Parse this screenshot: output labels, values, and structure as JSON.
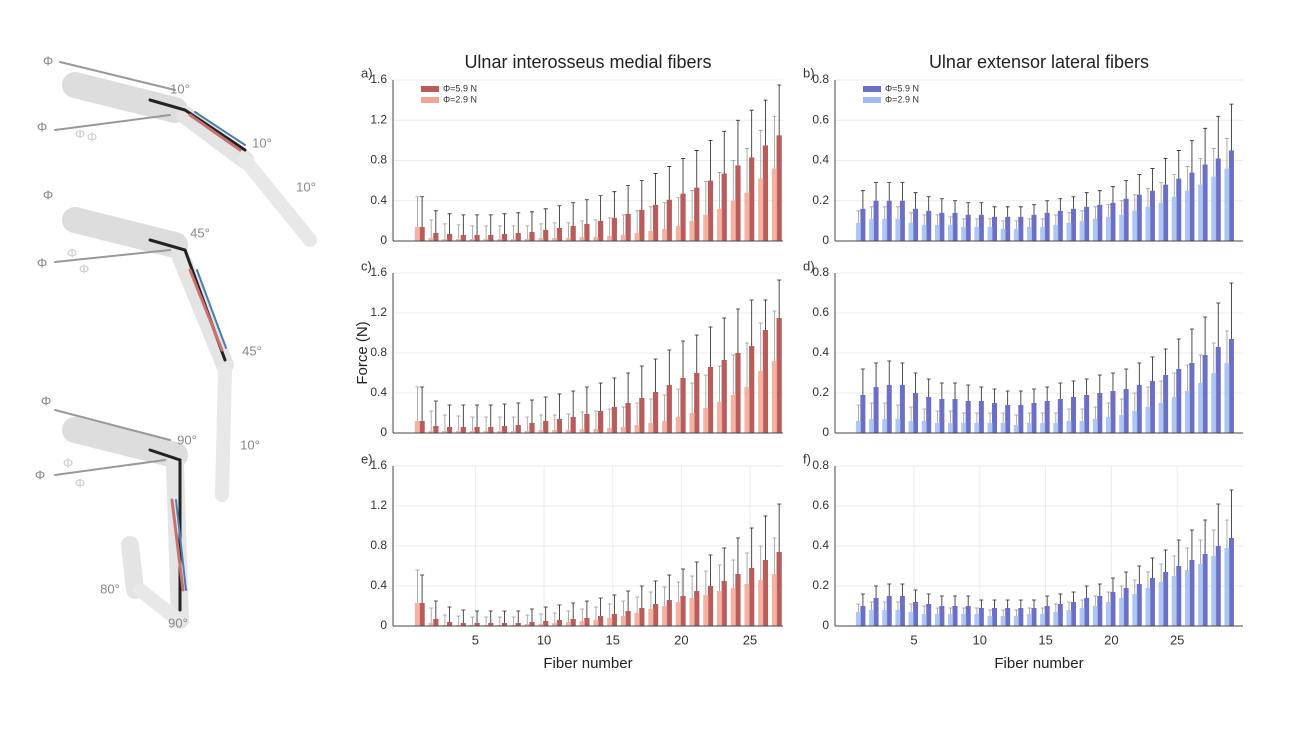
{
  "illustration": {
    "labels": [
      "Φ",
      "10°",
      "Φ",
      "Φ",
      "Φ",
      "10°",
      "10°",
      "Φ",
      "45°",
      "Φ",
      "Φ",
      "Φ",
      "45°",
      "10°",
      "Φ",
      "90°",
      "Φ",
      "Φ",
      "Φ",
      "80°",
      "90°"
    ]
  },
  "chart_data": [
    {
      "type": "bar",
      "panel": "a)",
      "title": "Ulnar interosseus medial fibers",
      "legend": "upper left",
      "grid": true,
      "x": [
        1,
        2,
        3,
        4,
        5,
        6,
        7,
        8,
        9,
        10,
        11,
        12,
        13,
        14,
        15,
        16,
        17,
        18,
        19,
        20,
        21,
        22,
        23,
        24,
        25,
        26,
        27
      ],
      "xlim": [
        -1,
        27.4
      ],
      "ylim": [
        0,
        1.6
      ],
      "yticks": [
        0,
        0.4,
        0.8,
        1.2,
        1.6
      ],
      "series": [
        {
          "name": "Φ=5.9 N",
          "color": "#b85c5c",
          "error_color": "#222222",
          "values": [
            0.14,
            0.08,
            0.07,
            0.06,
            0.06,
            0.06,
            0.07,
            0.08,
            0.09,
            0.11,
            0.13,
            0.15,
            0.17,
            0.2,
            0.23,
            0.27,
            0.31,
            0.36,
            0.41,
            0.47,
            0.53,
            0.6,
            0.67,
            0.75,
            0.83,
            0.95,
            1.05
          ],
          "errors": [
            0.3,
            0.22,
            0.2,
            0.2,
            0.2,
            0.2,
            0.2,
            0.2,
            0.2,
            0.21,
            0.22,
            0.23,
            0.24,
            0.25,
            0.26,
            0.28,
            0.29,
            0.31,
            0.33,
            0.35,
            0.37,
            0.4,
            0.42,
            0.45,
            0.47,
            0.45,
            0.5
          ]
        },
        {
          "name": "Φ=2.9 N",
          "color": "#f2a592",
          "error_color": "#999999",
          "values": [
            0.14,
            0.03,
            0.02,
            0.02,
            0.02,
            0.02,
            0.02,
            0.02,
            0.02,
            0.03,
            0.03,
            0.03,
            0.04,
            0.04,
            0.05,
            0.06,
            0.08,
            0.1,
            0.12,
            0.15,
            0.2,
            0.26,
            0.32,
            0.4,
            0.48,
            0.62,
            0.72
          ],
          "errors": [
            0.3,
            0.18,
            0.15,
            0.14,
            0.13,
            0.13,
            0.13,
            0.13,
            0.13,
            0.14,
            0.15,
            0.15,
            0.16,
            0.17,
            0.18,
            0.2,
            0.22,
            0.24,
            0.26,
            0.28,
            0.3,
            0.33,
            0.36,
            0.4,
            0.44,
            0.48,
            0.52
          ]
        }
      ]
    },
    {
      "type": "bar",
      "panel": "b)",
      "title": "Ulnar extensor lateral fibers",
      "legend": "upper left",
      "grid": true,
      "x": [
        1,
        2,
        3,
        4,
        5,
        6,
        7,
        8,
        9,
        10,
        11,
        12,
        13,
        14,
        15,
        16,
        17,
        18,
        19,
        20,
        21,
        22,
        23,
        24,
        25,
        26,
        27,
        28,
        29
      ],
      "xlim": [
        -1,
        30
      ],
      "ylim": [
        0,
        0.8
      ],
      "yticks": [
        0,
        0.2,
        0.4,
        0.6,
        0.8
      ],
      "series": [
        {
          "name": "Φ=5.9 N",
          "color": "#6b6fc6",
          "error_color": "#222222",
          "values": [
            0.16,
            0.2,
            0.2,
            0.2,
            0.16,
            0.15,
            0.14,
            0.14,
            0.13,
            0.13,
            0.12,
            0.12,
            0.12,
            0.13,
            0.14,
            0.15,
            0.16,
            0.17,
            0.18,
            0.19,
            0.21,
            0.23,
            0.25,
            0.28,
            0.31,
            0.34,
            0.38,
            0.41,
            0.45
          ],
          "errors": [
            0.09,
            0.09,
            0.09,
            0.09,
            0.08,
            0.07,
            0.07,
            0.06,
            0.06,
            0.06,
            0.05,
            0.05,
            0.05,
            0.05,
            0.06,
            0.06,
            0.06,
            0.07,
            0.07,
            0.08,
            0.09,
            0.1,
            0.11,
            0.13,
            0.14,
            0.16,
            0.18,
            0.21,
            0.23
          ]
        },
        {
          "name": "Φ=2.9 N",
          "color": "#9fbcf2",
          "error_color": "#999999",
          "values": [
            0.09,
            0.11,
            0.11,
            0.11,
            0.09,
            0.08,
            0.08,
            0.08,
            0.07,
            0.07,
            0.07,
            0.06,
            0.06,
            0.07,
            0.07,
            0.08,
            0.09,
            0.1,
            0.11,
            0.12,
            0.13,
            0.15,
            0.17,
            0.19,
            0.22,
            0.25,
            0.28,
            0.32,
            0.36
          ],
          "errors": [
            0.06,
            0.06,
            0.06,
            0.06,
            0.05,
            0.05,
            0.05,
            0.04,
            0.04,
            0.04,
            0.04,
            0.04,
            0.04,
            0.04,
            0.04,
            0.05,
            0.05,
            0.05,
            0.06,
            0.06,
            0.07,
            0.08,
            0.09,
            0.1,
            0.11,
            0.12,
            0.13,
            0.14,
            0.15
          ]
        }
      ]
    },
    {
      "type": "bar",
      "panel": "c)",
      "ylabel": "Force (N)",
      "grid": true,
      "x": [
        1,
        2,
        3,
        4,
        5,
        6,
        7,
        8,
        9,
        10,
        11,
        12,
        13,
        14,
        15,
        16,
        17,
        18,
        19,
        20,
        21,
        22,
        23,
        24,
        25,
        26,
        27
      ],
      "xlim": [
        -1,
        27.4
      ],
      "ylim": [
        0,
        1.6
      ],
      "yticks": [
        0,
        0.4,
        0.8,
        1.2,
        1.6
      ],
      "series": [
        {
          "color": "#b85c5c",
          "error_color": "#222222",
          "values": [
            0.12,
            0.07,
            0.06,
            0.06,
            0.06,
            0.06,
            0.07,
            0.08,
            0.1,
            0.12,
            0.14,
            0.16,
            0.19,
            0.22,
            0.26,
            0.3,
            0.35,
            0.41,
            0.48,
            0.55,
            0.6,
            0.66,
            0.73,
            0.8,
            0.87,
            1.03,
            1.15
          ],
          "errors": [
            0.34,
            0.25,
            0.22,
            0.22,
            0.22,
            0.22,
            0.22,
            0.22,
            0.23,
            0.24,
            0.25,
            0.26,
            0.27,
            0.28,
            0.29,
            0.3,
            0.32,
            0.33,
            0.35,
            0.37,
            0.38,
            0.4,
            0.42,
            0.44,
            0.46,
            0.3,
            0.38
          ]
        },
        {
          "color": "#f2a592",
          "error_color": "#999999",
          "values": [
            0.12,
            0.02,
            0.02,
            0.02,
            0.02,
            0.02,
            0.02,
            0.02,
            0.02,
            0.03,
            0.03,
            0.03,
            0.04,
            0.04,
            0.05,
            0.06,
            0.08,
            0.1,
            0.12,
            0.16,
            0.2,
            0.25,
            0.31,
            0.38,
            0.46,
            0.62,
            0.72
          ],
          "errors": [
            0.34,
            0.2,
            0.16,
            0.15,
            0.14,
            0.14,
            0.14,
            0.14,
            0.14,
            0.15,
            0.15,
            0.16,
            0.17,
            0.18,
            0.19,
            0.2,
            0.22,
            0.24,
            0.26,
            0.28,
            0.3,
            0.33,
            0.36,
            0.4,
            0.44,
            0.48,
            0.5
          ]
        }
      ]
    },
    {
      "type": "bar",
      "panel": "d)",
      "grid": true,
      "x": [
        1,
        2,
        3,
        4,
        5,
        6,
        7,
        8,
        9,
        10,
        11,
        12,
        13,
        14,
        15,
        16,
        17,
        18,
        19,
        20,
        21,
        22,
        23,
        24,
        25,
        26,
        27,
        28,
        29
      ],
      "xlim": [
        -1,
        30
      ],
      "ylim": [
        0,
        0.8
      ],
      "yticks": [
        0,
        0.2,
        0.4,
        0.6,
        0.8
      ],
      "series": [
        {
          "color": "#6b6fc6",
          "error_color": "#222222",
          "values": [
            0.19,
            0.23,
            0.24,
            0.24,
            0.2,
            0.18,
            0.17,
            0.17,
            0.16,
            0.16,
            0.15,
            0.14,
            0.14,
            0.15,
            0.16,
            0.17,
            0.18,
            0.19,
            0.2,
            0.21,
            0.22,
            0.24,
            0.26,
            0.29,
            0.32,
            0.35,
            0.39,
            0.43,
            0.47
          ],
          "errors": [
            0.13,
            0.12,
            0.12,
            0.11,
            0.1,
            0.09,
            0.08,
            0.08,
            0.08,
            0.07,
            0.07,
            0.07,
            0.07,
            0.07,
            0.07,
            0.08,
            0.08,
            0.08,
            0.09,
            0.09,
            0.1,
            0.11,
            0.12,
            0.13,
            0.15,
            0.17,
            0.19,
            0.22,
            0.28
          ]
        },
        {
          "color": "#9fbcf2",
          "error_color": "#999999",
          "values": [
            0.06,
            0.07,
            0.07,
            0.07,
            0.06,
            0.06,
            0.05,
            0.05,
            0.05,
            0.05,
            0.05,
            0.05,
            0.04,
            0.05,
            0.05,
            0.05,
            0.06,
            0.06,
            0.07,
            0.08,
            0.09,
            0.11,
            0.13,
            0.15,
            0.18,
            0.21,
            0.25,
            0.3,
            0.35
          ],
          "errors": [
            0.08,
            0.08,
            0.08,
            0.07,
            0.07,
            0.06,
            0.06,
            0.06,
            0.05,
            0.05,
            0.05,
            0.05,
            0.05,
            0.05,
            0.05,
            0.05,
            0.06,
            0.06,
            0.06,
            0.07,
            0.08,
            0.09,
            0.1,
            0.11,
            0.12,
            0.13,
            0.14,
            0.15,
            0.16
          ]
        }
      ]
    },
    {
      "type": "bar",
      "panel": "e)",
      "xlabel": "Fiber number",
      "grid": true,
      "x": [
        1,
        2,
        3,
        4,
        5,
        6,
        7,
        8,
        9,
        10,
        11,
        12,
        13,
        14,
        15,
        16,
        17,
        18,
        19,
        20,
        21,
        22,
        23,
        24,
        25,
        26,
        27
      ],
      "xlim": [
        -1,
        27.4
      ],
      "ylim": [
        0,
        1.6
      ],
      "yticks": [
        0,
        0.4,
        0.8,
        1.2,
        1.6
      ],
      "xticks": [
        5,
        10,
        15,
        20,
        25
      ],
      "series": [
        {
          "color": "#b85c5c",
          "error_color": "#222222",
          "values": [
            0.23,
            0.07,
            0.04,
            0.03,
            0.03,
            0.03,
            0.03,
            0.03,
            0.04,
            0.05,
            0.06,
            0.07,
            0.08,
            0.1,
            0.12,
            0.15,
            0.18,
            0.22,
            0.26,
            0.3,
            0.35,
            0.4,
            0.45,
            0.52,
            0.58,
            0.66,
            0.74
          ],
          "errors": [
            0.28,
            0.18,
            0.15,
            0.13,
            0.12,
            0.12,
            0.12,
            0.12,
            0.13,
            0.14,
            0.15,
            0.16,
            0.17,
            0.18,
            0.19,
            0.2,
            0.22,
            0.23,
            0.25,
            0.27,
            0.29,
            0.31,
            0.33,
            0.36,
            0.4,
            0.44,
            0.48
          ]
        },
        {
          "color": "#f2a592",
          "error_color": "#999999",
          "values": [
            0.23,
            0.03,
            0.01,
            0.01,
            0.01,
            0.01,
            0.01,
            0.01,
            0.02,
            0.02,
            0.03,
            0.04,
            0.05,
            0.06,
            0.08,
            0.1,
            0.13,
            0.17,
            0.2,
            0.24,
            0.28,
            0.31,
            0.35,
            0.38,
            0.42,
            0.46,
            0.52
          ],
          "errors": [
            0.33,
            0.15,
            0.1,
            0.09,
            0.08,
            0.08,
            0.08,
            0.08,
            0.09,
            0.1,
            0.1,
            0.11,
            0.12,
            0.13,
            0.14,
            0.15,
            0.16,
            0.17,
            0.19,
            0.2,
            0.22,
            0.24,
            0.26,
            0.28,
            0.31,
            0.34,
            0.36
          ]
        }
      ]
    },
    {
      "type": "bar",
      "panel": "f)",
      "xlabel": "Fiber number",
      "grid": true,
      "x": [
        1,
        2,
        3,
        4,
        5,
        6,
        7,
        8,
        9,
        10,
        11,
        12,
        13,
        14,
        15,
        16,
        17,
        18,
        19,
        20,
        21,
        22,
        23,
        24,
        25,
        26,
        27,
        28,
        29
      ],
      "xlim": [
        -1,
        30
      ],
      "ylim": [
        0,
        0.8
      ],
      "yticks": [
        0,
        0.2,
        0.4,
        0.6,
        0.8
      ],
      "xticks": [
        5,
        10,
        15,
        20,
        25
      ],
      "series": [
        {
          "color": "#6b6fc6",
          "error_color": "#222222",
          "values": [
            0.1,
            0.14,
            0.15,
            0.15,
            0.12,
            0.11,
            0.1,
            0.1,
            0.1,
            0.09,
            0.09,
            0.09,
            0.09,
            0.09,
            0.1,
            0.11,
            0.12,
            0.14,
            0.15,
            0.17,
            0.19,
            0.21,
            0.24,
            0.27,
            0.3,
            0.33,
            0.36,
            0.4,
            0.44
          ],
          "errors": [
            0.06,
            0.06,
            0.06,
            0.06,
            0.06,
            0.05,
            0.05,
            0.05,
            0.05,
            0.04,
            0.04,
            0.04,
            0.04,
            0.04,
            0.05,
            0.05,
            0.05,
            0.06,
            0.06,
            0.07,
            0.08,
            0.09,
            0.1,
            0.11,
            0.13,
            0.15,
            0.17,
            0.21,
            0.24
          ]
        },
        {
          "color": "#9fbcf2",
          "error_color": "#999999",
          "values": [
            0.07,
            0.08,
            0.08,
            0.08,
            0.07,
            0.06,
            0.06,
            0.06,
            0.06,
            0.06,
            0.05,
            0.05,
            0.05,
            0.06,
            0.06,
            0.07,
            0.08,
            0.09,
            0.1,
            0.12,
            0.14,
            0.16,
            0.19,
            0.22,
            0.25,
            0.28,
            0.31,
            0.35,
            0.39
          ],
          "errors": [
            0.04,
            0.04,
            0.04,
            0.04,
            0.04,
            0.04,
            0.03,
            0.03,
            0.03,
            0.03,
            0.03,
            0.03,
            0.03,
            0.03,
            0.03,
            0.04,
            0.04,
            0.04,
            0.05,
            0.05,
            0.06,
            0.07,
            0.08,
            0.09,
            0.1,
            0.11,
            0.12,
            0.13,
            0.14
          ]
        }
      ]
    }
  ]
}
